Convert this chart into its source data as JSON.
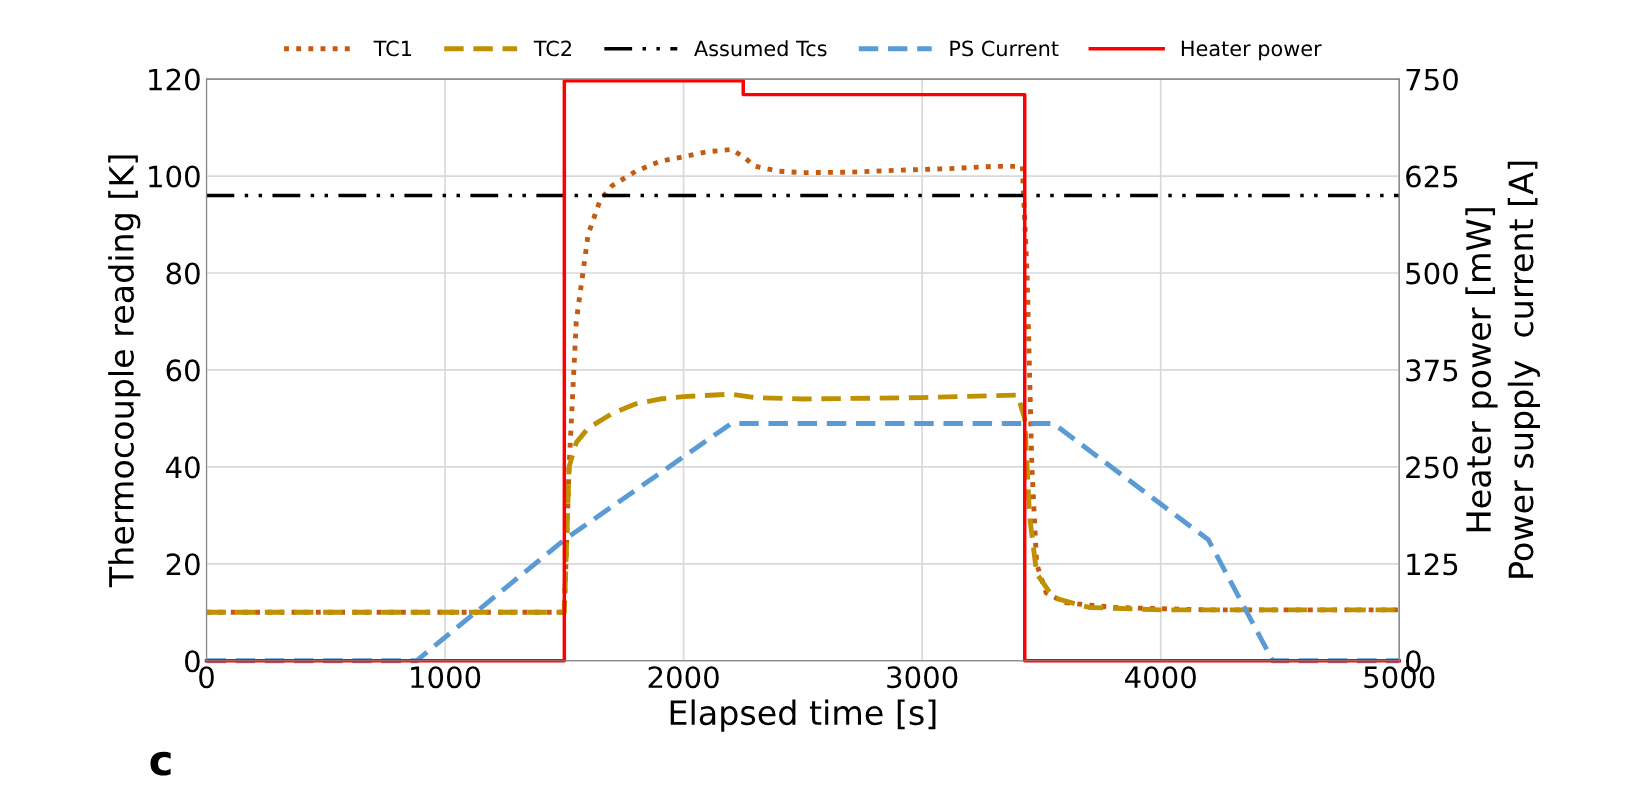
{
  "chart_data": {
    "type": "line",
    "xlabel": "Elapsed time [s]",
    "ylabel": "Thermocouple reading [K]",
    "y2label": "Heater power [mW]\nPower supply  current [A]",
    "xlim": [
      0,
      5000
    ],
    "xticks": [
      0,
      1000,
      2000,
      3000,
      4000,
      5000
    ],
    "ylim": [
      0,
      120
    ],
    "yticks": [
      0,
      20,
      40,
      60,
      80,
      100,
      120
    ],
    "y2lim": [
      0,
      750
    ],
    "y2ticks": [
      0,
      125,
      250,
      375,
      500,
      625,
      750
    ],
    "grid": true,
    "legend": "top",
    "marker": "none",
    "annotations": [
      "c"
    ],
    "series": [
      {
        "name": "TC1",
        "color": "#c55a11",
        "line_style": "dotted",
        "x": [
          0,
          500,
          1000,
          1500,
          1520,
          1550,
          1600,
          1650,
          1700,
          1800,
          1900,
          2000,
          2100,
          2200,
          2250,
          2300,
          2400,
          2500,
          2700,
          2900,
          3100,
          3300,
          3420,
          3440,
          3460,
          3480,
          3520,
          3600,
          3800,
          4200,
          5000
        ],
        "values": [
          10,
          10,
          10,
          10,
          40,
          70,
          88,
          95,
          98,
          101,
          103,
          104,
          105,
          105.5,
          104,
          102,
          101,
          100.7,
          100.8,
          101.2,
          101.5,
          102,
          102,
          80,
          40,
          20,
          14,
          12,
          11,
          10.5,
          10.5
        ]
      },
      {
        "name": "TC2",
        "color": "#bf9000",
        "line_style": "dashed",
        "x": [
          0,
          500,
          1000,
          1500,
          1520,
          1550,
          1600,
          1700,
          1800,
          1900,
          2000,
          2200,
          2300,
          2500,
          3000,
          3400,
          3430,
          3450,
          3480,
          3550,
          3700,
          4000,
          5000
        ],
        "values": [
          10,
          10,
          10,
          10,
          40,
          45,
          48,
          51,
          53,
          54,
          54.5,
          55,
          54.3,
          54,
          54.3,
          54.8,
          50,
          30,
          18,
          13,
          11,
          10.5,
          10.5
        ]
      },
      {
        "name": "Assumed Tcs",
        "color": "#000000",
        "line_style": "dashdotdot",
        "x": [
          0,
          5000
        ],
        "values": [
          96,
          96
        ]
      },
      {
        "name": "PS Current",
        "color": "#5b9bd5",
        "line_style": "dashed",
        "axis": "y2",
        "x": [
          0,
          880,
          1500,
          2200,
          3450,
          3550,
          4200,
          4470,
          5000
        ],
        "values": [
          0,
          0,
          156,
          306,
          306,
          306,
          156,
          0,
          0
        ]
      },
      {
        "name": "Heater power",
        "color": "#ff0000",
        "line_style": "solid",
        "axis": "y2",
        "x": [
          0,
          1500,
          1500,
          2250,
          2250,
          3430,
          3430,
          5000
        ],
        "values": [
          0,
          0,
          748,
          748,
          730,
          730,
          0,
          0
        ]
      }
    ]
  }
}
